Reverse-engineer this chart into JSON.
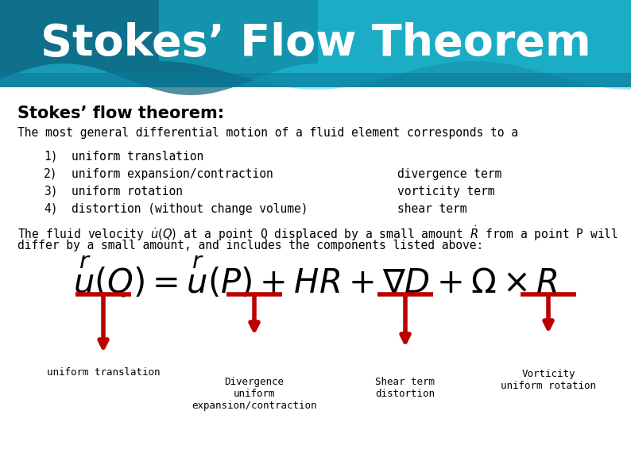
{
  "title": "Stokes’ Flow Theorem",
  "title_color": "#ffffff",
  "subtitle": "Stokes’ flow theorem:",
  "body_bg": "#ffffff",
  "intro_text": "The most general differential motion of a fluid element corresponds to a",
  "items": [
    [
      "1)",
      "uniform translation"
    ],
    [
      "2)",
      "uniform expansion/contraction"
    ],
    [
      "3)",
      "uniform rotation"
    ],
    [
      "4)",
      "distortion (without change volume)"
    ]
  ],
  "right_labels": [
    null,
    "divergence term",
    "vorticity term",
    "shear term"
  ],
  "fluid_line1": "The fluid velocity  at a point Q displaced by a small amount  from a point P will",
  "fluid_line2": "differ by a small amount, and includes the components listed above:",
  "arrow_color": "#bb0000",
  "header_base": "#1a9ab5",
  "header_dark": "#0d6e8a",
  "header_mid": "#0f8aaa"
}
